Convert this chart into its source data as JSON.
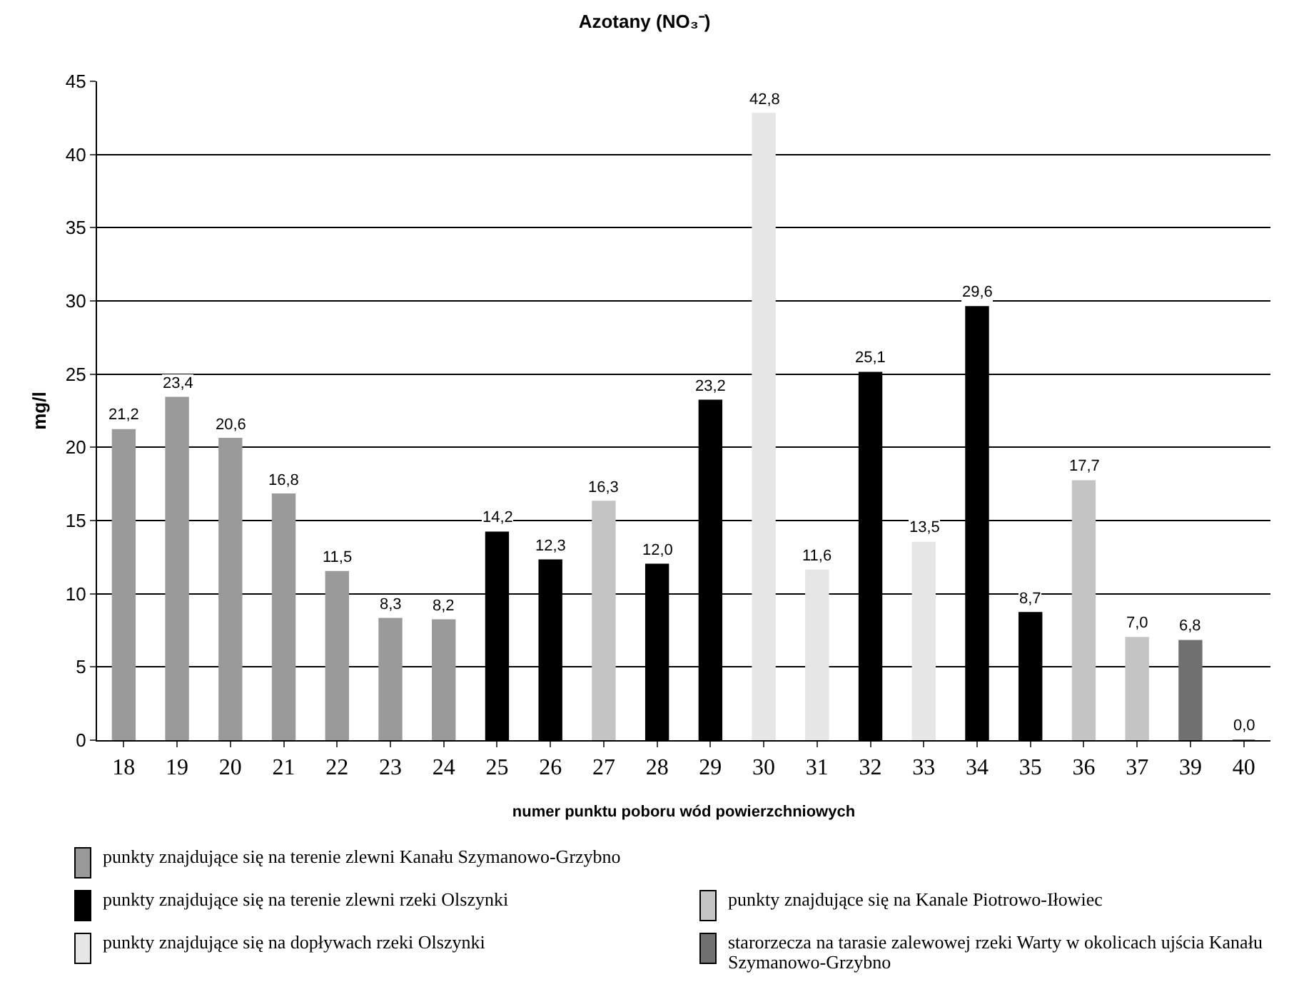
{
  "chart_data": {
    "type": "bar",
    "title": "Azotany (NO₃⁻)",
    "xlabel": "numer punktu poboru wód powierzchniowych",
    "ylabel": "mg/l",
    "categories": [
      "18",
      "19",
      "20",
      "21",
      "22",
      "23",
      "24",
      "25",
      "26",
      "27",
      "28",
      "29",
      "30",
      "31",
      "32",
      "33",
      "34",
      "35",
      "36",
      "37",
      "39",
      "40"
    ],
    "series": [
      {
        "name": "punkty znajdujące się na terenie zlewni Kanału Szymanowo-Grzybno",
        "color": "#9a9a9a",
        "values": [
          21.2,
          23.4,
          20.6,
          16.8,
          11.5,
          8.3,
          8.2,
          null,
          null,
          null,
          null,
          null,
          null,
          null,
          null,
          null,
          null,
          null,
          null,
          null,
          null,
          null
        ],
        "value_labels": [
          "21,2",
          "23,4",
          "20,6",
          "16,8",
          "11,5",
          "8,3",
          "8,2",
          null,
          null,
          null,
          null,
          null,
          null,
          null,
          null,
          null,
          null,
          null,
          null,
          null,
          null,
          null
        ]
      },
      {
        "name": "punkty znajdujące się na terenie zlewni rzeki Olszynki",
        "color": "#000000",
        "values": [
          null,
          null,
          null,
          null,
          null,
          null,
          null,
          14.2,
          12.3,
          null,
          12.0,
          23.2,
          null,
          null,
          25.1,
          null,
          29.6,
          8.7,
          null,
          null,
          null,
          null
        ],
        "value_labels": [
          null,
          null,
          null,
          null,
          null,
          null,
          null,
          "14,2",
          "12,3",
          null,
          "12,0",
          "23,2",
          null,
          null,
          "25,1",
          null,
          "29,6",
          "8,7",
          null,
          null,
          null,
          null
        ]
      },
      {
        "name": "punkty znajdujące się na Kanale Piotrowo-Iłowiec",
        "color": "#c4c4c4",
        "values": [
          null,
          null,
          null,
          null,
          null,
          null,
          null,
          null,
          null,
          16.3,
          null,
          null,
          null,
          null,
          null,
          null,
          null,
          null,
          17.7,
          7.0,
          null,
          null
        ],
        "value_labels": [
          null,
          null,
          null,
          null,
          null,
          null,
          null,
          null,
          null,
          "16,3",
          null,
          null,
          null,
          null,
          null,
          null,
          null,
          null,
          "17,7",
          "7,0",
          null,
          null
        ]
      },
      {
        "name": "punkty znajdujące się na dopływach rzeki Olszynki",
        "color": "#e6e6e6",
        "values": [
          null,
          null,
          null,
          null,
          null,
          null,
          null,
          null,
          null,
          null,
          null,
          null,
          42.8,
          11.6,
          null,
          13.5,
          null,
          null,
          null,
          null,
          null,
          null
        ],
        "value_labels": [
          null,
          null,
          null,
          null,
          null,
          null,
          null,
          null,
          null,
          null,
          null,
          null,
          "42,8",
          "11,6",
          null,
          "13,5",
          null,
          null,
          null,
          null,
          null,
          null
        ]
      },
      {
        "name": "starorzecza na tarasie zalewowej rzeki Warty w okolicach ujścia Kanału Szymanowo-Grzybno",
        "color": "#707070",
        "values": [
          null,
          null,
          null,
          null,
          null,
          null,
          null,
          null,
          null,
          null,
          null,
          null,
          null,
          null,
          null,
          null,
          null,
          null,
          null,
          null,
          6.8,
          0.0
        ],
        "value_labels": [
          null,
          null,
          null,
          null,
          null,
          null,
          null,
          null,
          null,
          null,
          null,
          null,
          null,
          null,
          null,
          null,
          null,
          null,
          null,
          null,
          "6,8",
          "0,0"
        ]
      }
    ],
    "ylim": [
      0,
      45
    ],
    "yticks": [
      0,
      5,
      10,
      15,
      20,
      25,
      30,
      35,
      40,
      45
    ],
    "grid": "y",
    "legend": "bottom"
  }
}
